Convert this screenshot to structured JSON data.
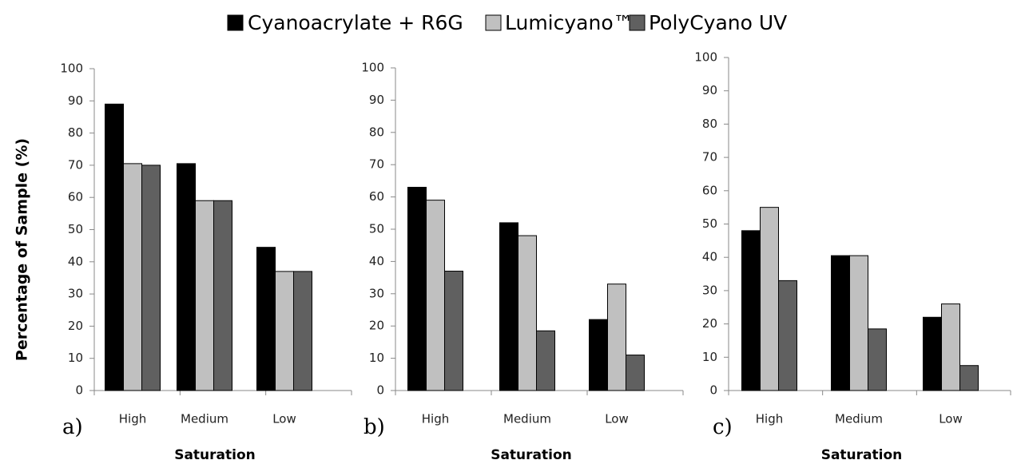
{
  "chart_data": [
    {
      "type": "bar",
      "panel_label": "a)",
      "y_label": "Percentage of Sample (%)",
      "x_label": "Saturation",
      "categories": [
        "High",
        "Medium",
        "Low"
      ],
      "series": [
        {
          "name": "Cyanoacrylate + R6G",
          "color": "#000000",
          "values": [
            89,
            70.5,
            44.5
          ]
        },
        {
          "name": "Lumicyano™",
          "color": "#c0c0c0",
          "values": [
            70.5,
            59,
            37
          ]
        },
        {
          "name": "PolyCyano UV",
          "color": "#606060",
          "values": [
            70,
            59,
            37
          ]
        }
      ],
      "ylim": [
        0,
        100
      ],
      "yticks": [
        0,
        10,
        20,
        30,
        40,
        50,
        60,
        70,
        80,
        90,
        100
      ]
    },
    {
      "type": "bar",
      "panel_label": "b)",
      "x_label": "Saturation",
      "categories": [
        "High",
        "Medium",
        "Low"
      ],
      "series": [
        {
          "name": "Cyanoacrylate + R6G",
          "color": "#000000",
          "values": [
            63,
            52,
            22
          ]
        },
        {
          "name": "Lumicyano™",
          "color": "#c0c0c0",
          "values": [
            59,
            48,
            33
          ]
        },
        {
          "name": "PolyCyano UV",
          "color": "#606060",
          "values": [
            37,
            18.5,
            11
          ]
        }
      ],
      "ylim": [
        0,
        100
      ],
      "yticks": [
        0,
        10,
        20,
        30,
        40,
        50,
        60,
        70,
        80,
        90,
        100
      ]
    },
    {
      "type": "bar",
      "panel_label": "c)",
      "x_label": "Saturation",
      "categories": [
        "High",
        "Medium",
        "Low"
      ],
      "series": [
        {
          "name": "Cyanoacrylate + R6G",
          "color": "#000000",
          "values": [
            48,
            40.5,
            22
          ]
        },
        {
          "name": "Lumicyano™",
          "color": "#c0c0c0",
          "values": [
            55,
            40.5,
            26
          ]
        },
        {
          "name": "PolyCyano UV",
          "color": "#606060",
          "values": [
            33,
            18.5,
            7.5
          ]
        }
      ],
      "ylim": [
        0,
        100
      ],
      "yticks": [
        0,
        10,
        20,
        30,
        40,
        50,
        60,
        70,
        80,
        90,
        100
      ]
    }
  ]
}
